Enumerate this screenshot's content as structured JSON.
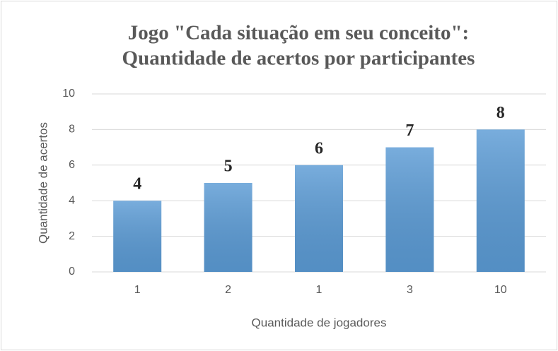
{
  "chart_data": {
    "type": "bar",
    "title": [
      "Jogo \"Cada situação em seu conceito\":",
      "Quantidade de acertos por participantes"
    ],
    "x_label": "Quantidade de jogadores",
    "y_label": "Quantidade de acertos",
    "categories": [
      "1",
      "2",
      "1",
      "3",
      "10"
    ],
    "values": [
      4,
      5,
      6,
      7,
      8
    ],
    "color": "#5b9bd5",
    "ylim": [
      0,
      10
    ],
    "yticks": [
      0,
      2,
      4,
      6,
      8,
      10
    ],
    "grid": true
  }
}
